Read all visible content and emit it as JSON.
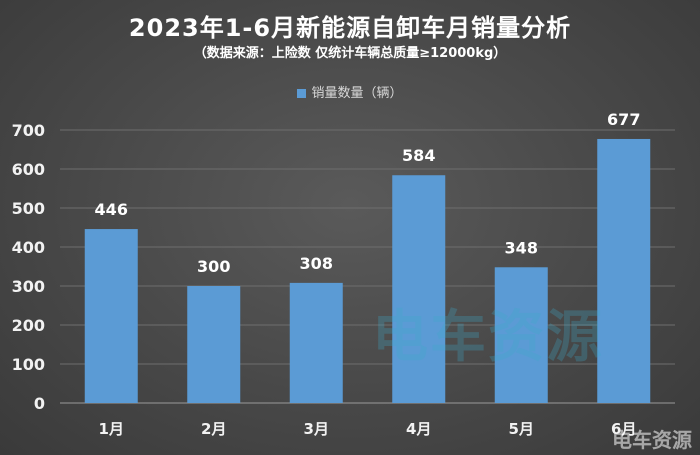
{
  "chart_data": {
    "type": "bar",
    "title": "2023年1-6月新能源自卸车月销量分析",
    "subtitle": "（数据来源：上险数 仅统计车辆总质量≥12000kg）",
    "categories": [
      "1月",
      "2月",
      "3月",
      "4月",
      "5月",
      "6月"
    ],
    "series": [
      {
        "name": "销量数量（辆）",
        "values": [
          446,
          300,
          308,
          584,
          348,
          677
        ]
      }
    ],
    "ylim": [
      0,
      700
    ],
    "yticks": [
      0,
      100,
      200,
      300,
      400,
      500,
      600,
      700
    ],
    "grid": true,
    "legend": "top-center",
    "bar_color": "#5b9bd5"
  },
  "watermark": {
    "main": "电车资源",
    "corner": "电车资源"
  }
}
